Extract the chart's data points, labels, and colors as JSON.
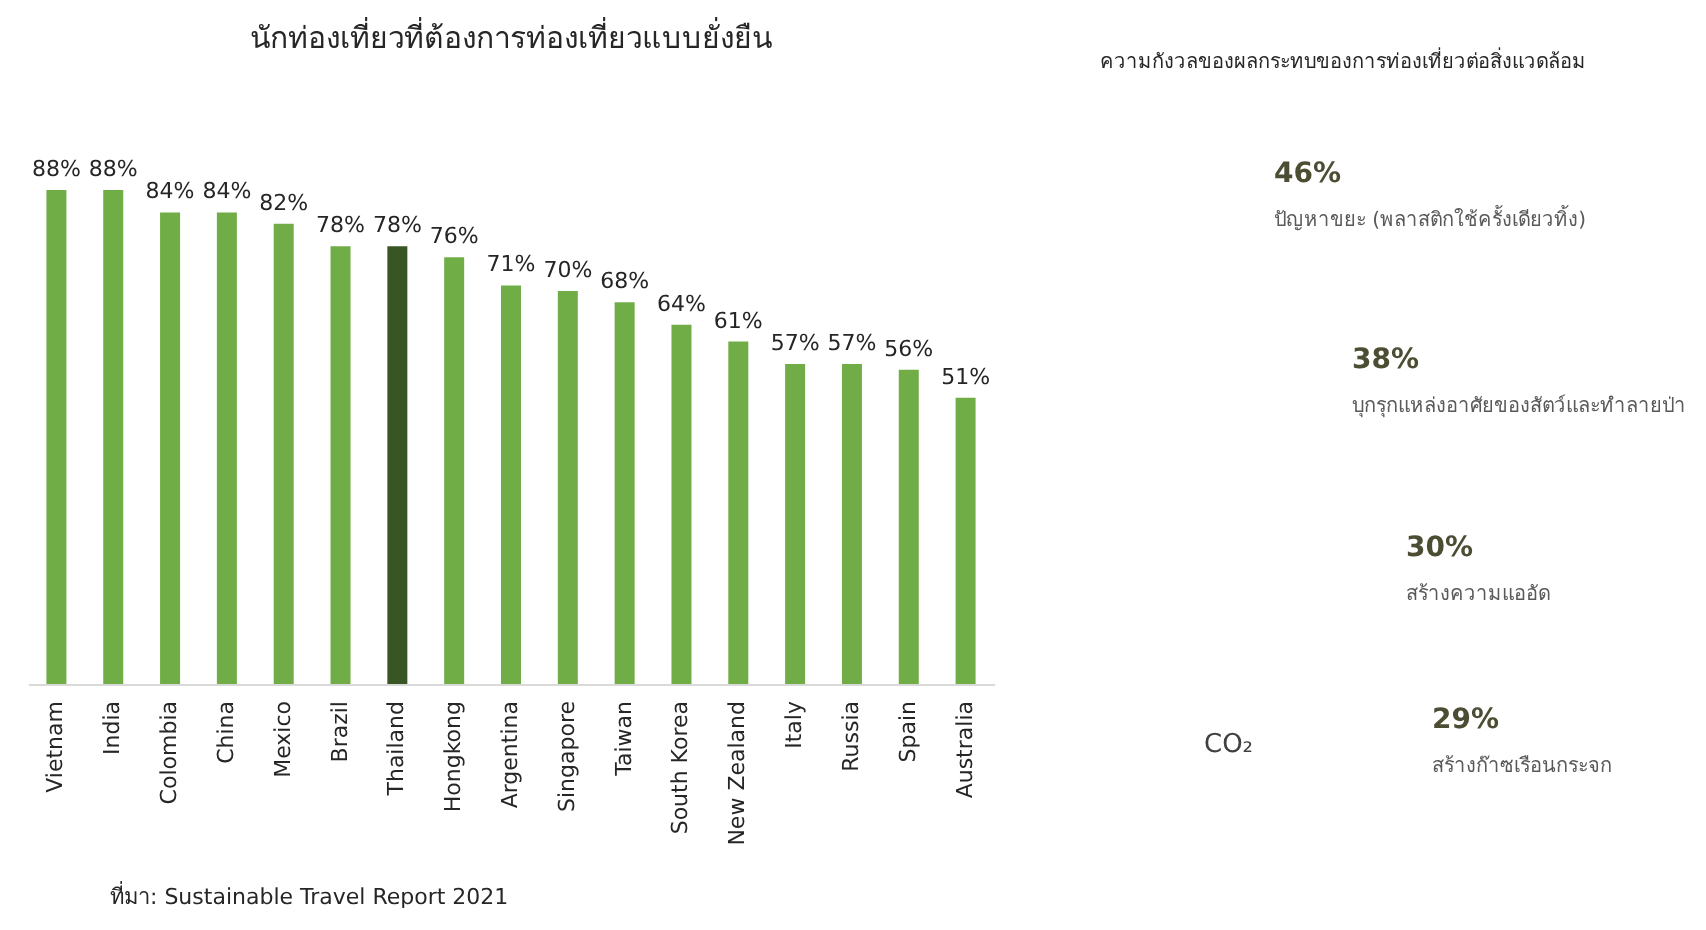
{
  "chart_data": [
    {
      "type": "bar",
      "title": "นักท่องเที่ยวที่ต้องการท่องเที่ยวแบบยั่งยืน",
      "categories": [
        "Vietnam",
        "India",
        "Colombia",
        "China",
        "Mexico",
        "Brazil",
        "Thailand",
        "Hongkong",
        "Argentina",
        "Singapore",
        "Taiwan",
        "South Korea",
        "New Zealand",
        "Italy",
        "Russia",
        "Spain",
        "Australia"
      ],
      "values": [
        88,
        88,
        84,
        84,
        82,
        78,
        78,
        76,
        71,
        70,
        68,
        64,
        61,
        57,
        57,
        56,
        51
      ],
      "colors": [
        "#70ad47",
        "#70ad47",
        "#70ad47",
        "#70ad47",
        "#70ad47",
        "#70ad47",
        "#375623",
        "#70ad47",
        "#70ad47",
        "#70ad47",
        "#70ad47",
        "#70ad47",
        "#70ad47",
        "#70ad47",
        "#70ad47",
        "#70ad47",
        "#70ad47"
      ],
      "value_labels": [
        "88%",
        "88%",
        "84%",
        "84%",
        "82%",
        "78%",
        "78%",
        "76%",
        "71%",
        "70%",
        "68%",
        "64%",
        "61%",
        "57%",
        "57%",
        "56%",
        "51%"
      ],
      "annotations": [
        "ที่มา: Sustainable Travel Report 2021"
      ]
    },
    {
      "type": "other",
      "title": "ความกังวลของผลกระทบของการท่องเที่ยวต่อสิ่งแวดล้อม",
      "annotations": [
        "46%",
        "ปัญหาขยะ (พลาสติกใช้ครั้งเดียวทิ้ง)",
        "38%",
        "บุกรุกแหล่งอาศัยของสัตว์และทำลายป่า",
        "30%",
        "สร้างความแออัด",
        "29%",
        "สร้างก๊าซเรือนกระจก",
        "CO₂"
      ]
    }
  ]
}
